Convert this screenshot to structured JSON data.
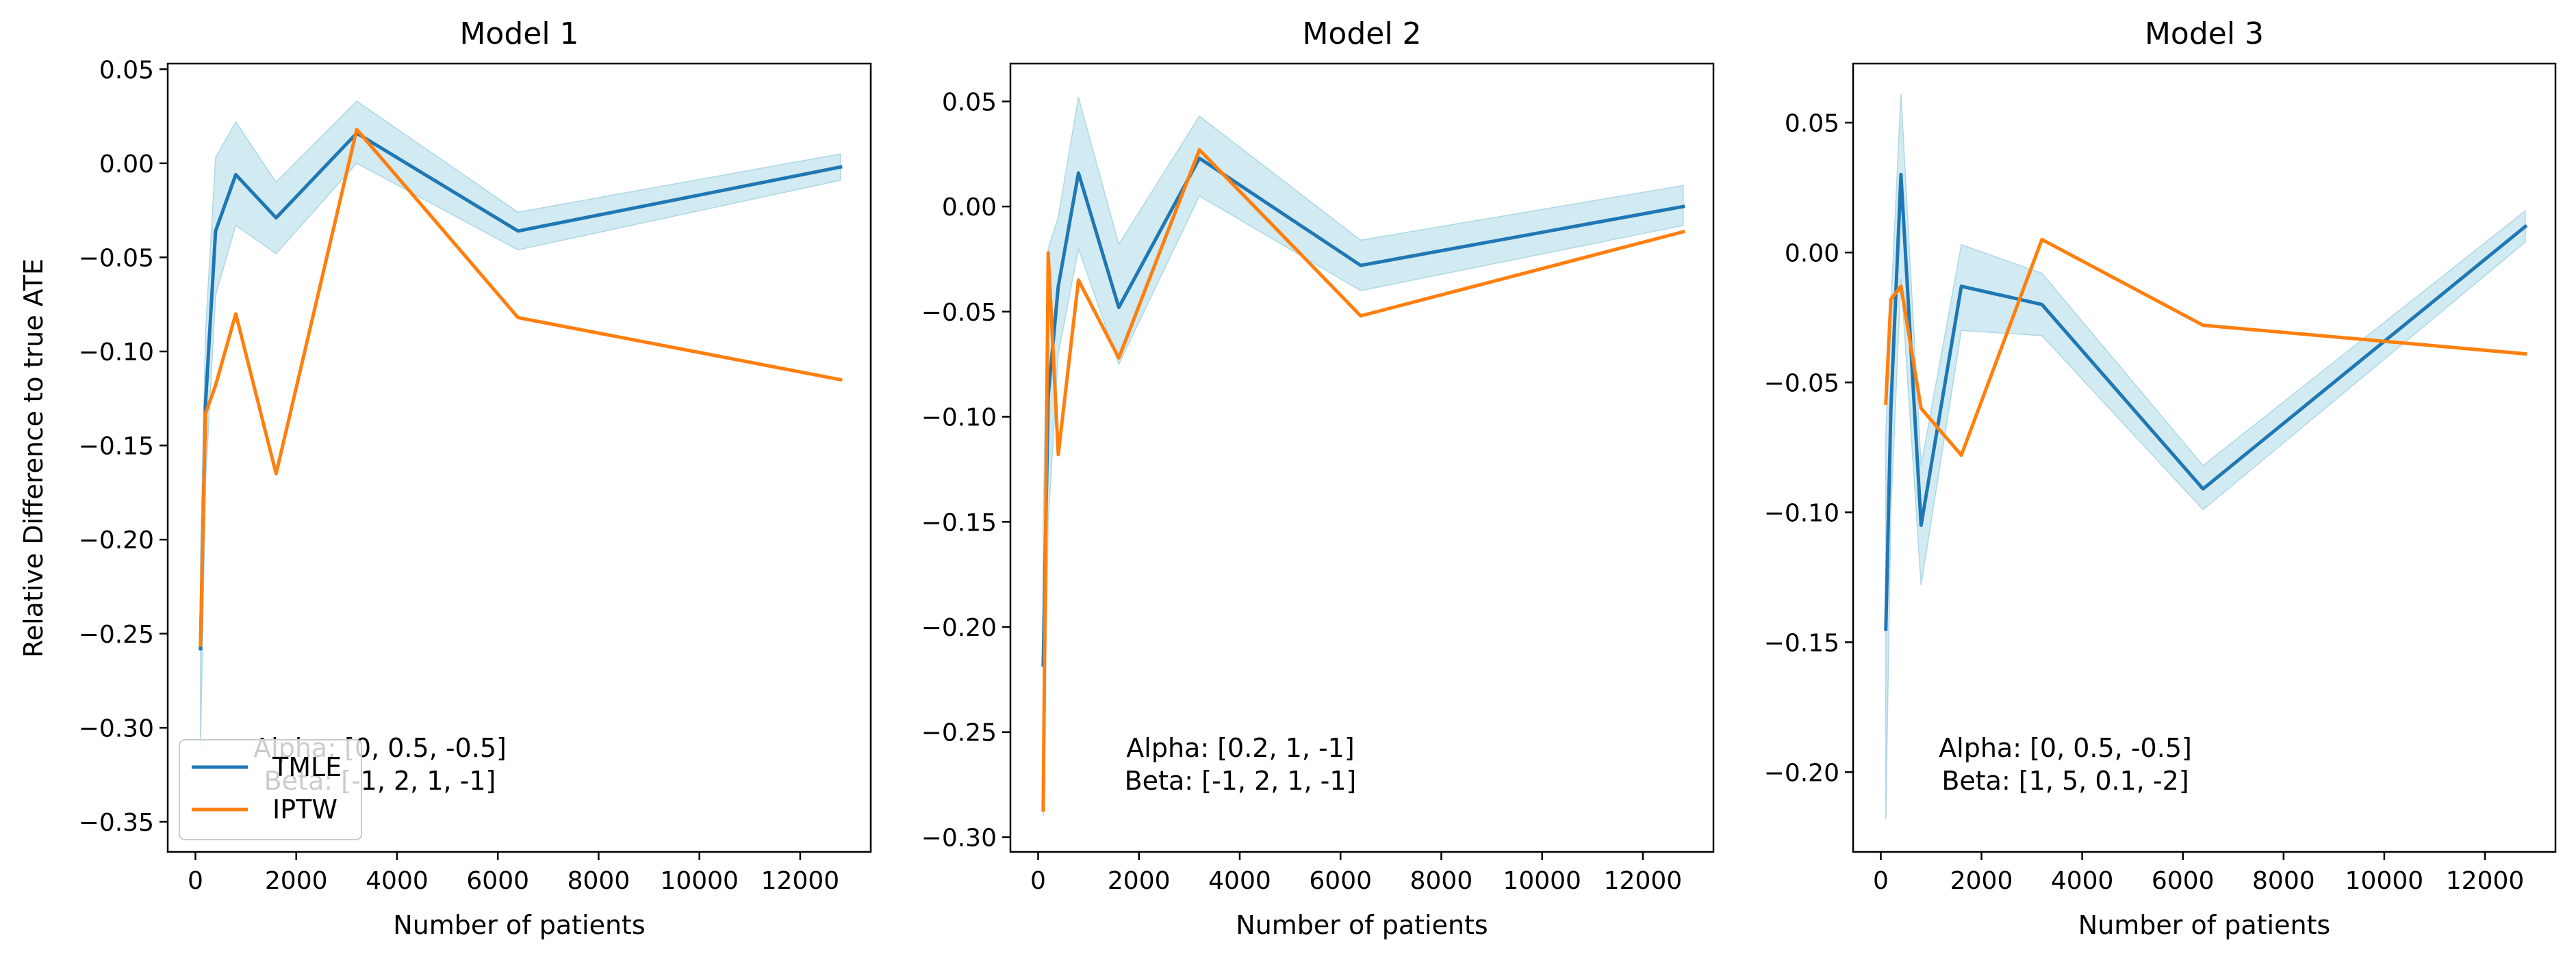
{
  "figure": {
    "ylabel": "Relative Difference to true ATE",
    "xlabel": "Number of patients"
  },
  "colors": {
    "tmle": "#1f77b4",
    "iptw": "#ff7f0e",
    "band": "#add8e6"
  },
  "legend": {
    "placement": "lower-left",
    "panel": 0,
    "entries": [
      "TMLE",
      "IPTW"
    ]
  },
  "chart_data": [
    {
      "type": "line",
      "title": "Model 1",
      "xlabel": "Number of patients",
      "ylabel": "Relative Difference to true ATE",
      "xlim": [
        -550,
        13400
      ],
      "ylim": [
        -0.366,
        0.053
      ],
      "xticks": [
        0,
        2000,
        4000,
        6000,
        8000,
        10000,
        12000
      ],
      "yticks": [
        -0.35,
        -0.3,
        -0.25,
        -0.2,
        -0.15,
        -0.1,
        -0.05,
        0.0,
        0.05
      ],
      "ytick_labels": [
        "−0.35",
        "−0.30",
        "−0.25",
        "−0.20",
        "−0.15",
        "−0.10",
        "−0.05",
        "0.00",
        "0.05"
      ],
      "xtick_labels": [
        "0",
        "2000",
        "4000",
        "6000",
        "8000",
        "10000",
        "12000"
      ],
      "x": [
        100,
        200,
        400,
        800,
        1600,
        3200,
        6400,
        12800
      ],
      "annotation": [
        "Alpha: [0, 0.5, -0.5]",
        "Beta: [-1, 2, 1, -1]"
      ],
      "series": [
        {
          "name": "TMLE",
          "values": [
            -0.258,
            -0.128,
            -0.036,
            -0.006,
            -0.029,
            0.016,
            -0.036,
            -0.002
          ],
          "lower": [
            -0.31,
            -0.17,
            -0.07,
            -0.033,
            -0.048,
            0.0,
            -0.046,
            -0.009
          ],
          "upper": [
            -0.21,
            -0.09,
            0.003,
            0.022,
            -0.01,
            0.033,
            -0.026,
            0.005
          ]
        },
        {
          "name": "IPTW",
          "values": [
            -0.256,
            -0.133,
            -0.118,
            -0.08,
            -0.165,
            0.018,
            -0.082,
            -0.115
          ]
        }
      ]
    },
    {
      "type": "line",
      "title": "Model 2",
      "xlabel": "Number of patients",
      "xlim": [
        -550,
        13400
      ],
      "ylim": [
        -0.307,
        0.068
      ],
      "xticks": [
        0,
        2000,
        4000,
        6000,
        8000,
        10000,
        12000
      ],
      "yticks": [
        -0.3,
        -0.25,
        -0.2,
        -0.15,
        -0.1,
        -0.05,
        0.0,
        0.05
      ],
      "ytick_labels": [
        "−0.30",
        "−0.25",
        "−0.20",
        "−0.15",
        "−0.10",
        "−0.05",
        "0.00",
        "0.05"
      ],
      "xtick_labels": [
        "0",
        "2000",
        "4000",
        "6000",
        "8000",
        "10000",
        "12000"
      ],
      "x": [
        100,
        200,
        400,
        800,
        1600,
        3200,
        6400,
        12800
      ],
      "annotation": [
        "Alpha: [0.2, 1, -1]",
        "Beta: [-1, 2, 1, -1]"
      ],
      "series": [
        {
          "name": "TMLE",
          "values": [
            -0.218,
            -0.09,
            -0.038,
            0.016,
            -0.048,
            0.023,
            -0.028,
            0.0
          ],
          "lower": [
            -0.29,
            -0.15,
            -0.07,
            -0.02,
            -0.075,
            0.005,
            -0.04,
            -0.009
          ],
          "upper": [
            -0.15,
            -0.02,
            -0.005,
            0.052,
            -0.018,
            0.043,
            -0.016,
            0.01
          ]
        },
        {
          "name": "IPTW",
          "values": [
            -0.287,
            -0.022,
            -0.118,
            -0.035,
            -0.072,
            0.027,
            -0.052,
            -0.012
          ]
        }
      ]
    },
    {
      "type": "line",
      "title": "Model 3",
      "xlabel": "Number of patients",
      "xlim": [
        -550,
        13400
      ],
      "ylim": [
        -0.2307,
        0.0727
      ],
      "xticks": [
        0,
        2000,
        4000,
        6000,
        8000,
        10000,
        12000
      ],
      "yticks": [
        -0.2,
        -0.15,
        -0.1,
        -0.05,
        0.0,
        0.05
      ],
      "ytick_labels": [
        "−0.20",
        "−0.15",
        "−0.10",
        "−0.05",
        "0.00",
        "0.05"
      ],
      "xtick_labels": [
        "0",
        "2000",
        "4000",
        "6000",
        "8000",
        "10000",
        "12000"
      ],
      "x": [
        100,
        200,
        400,
        800,
        1600,
        3200,
        6400,
        12800
      ],
      "annotation": [
        "Alpha: [0, 0.5, -0.5]",
        "Beta: [1, 5, 0.1, -2]"
      ],
      "series": [
        {
          "name": "TMLE",
          "values": [
            -0.145,
            -0.06,
            0.03,
            -0.105,
            -0.013,
            -0.02,
            -0.091,
            0.01
          ],
          "lower": [
            -0.218,
            -0.1,
            -0.01,
            -0.128,
            -0.03,
            -0.032,
            -0.099,
            0.004
          ],
          "upper": [
            -0.07,
            -0.02,
            0.061,
            -0.082,
            0.003,
            -0.008,
            -0.082,
            0.016
          ]
        },
        {
          "name": "IPTW",
          "values": [
            -0.058,
            -0.018,
            -0.013,
            -0.06,
            -0.078,
            0.005,
            -0.028,
            -0.039
          ]
        }
      ]
    }
  ]
}
